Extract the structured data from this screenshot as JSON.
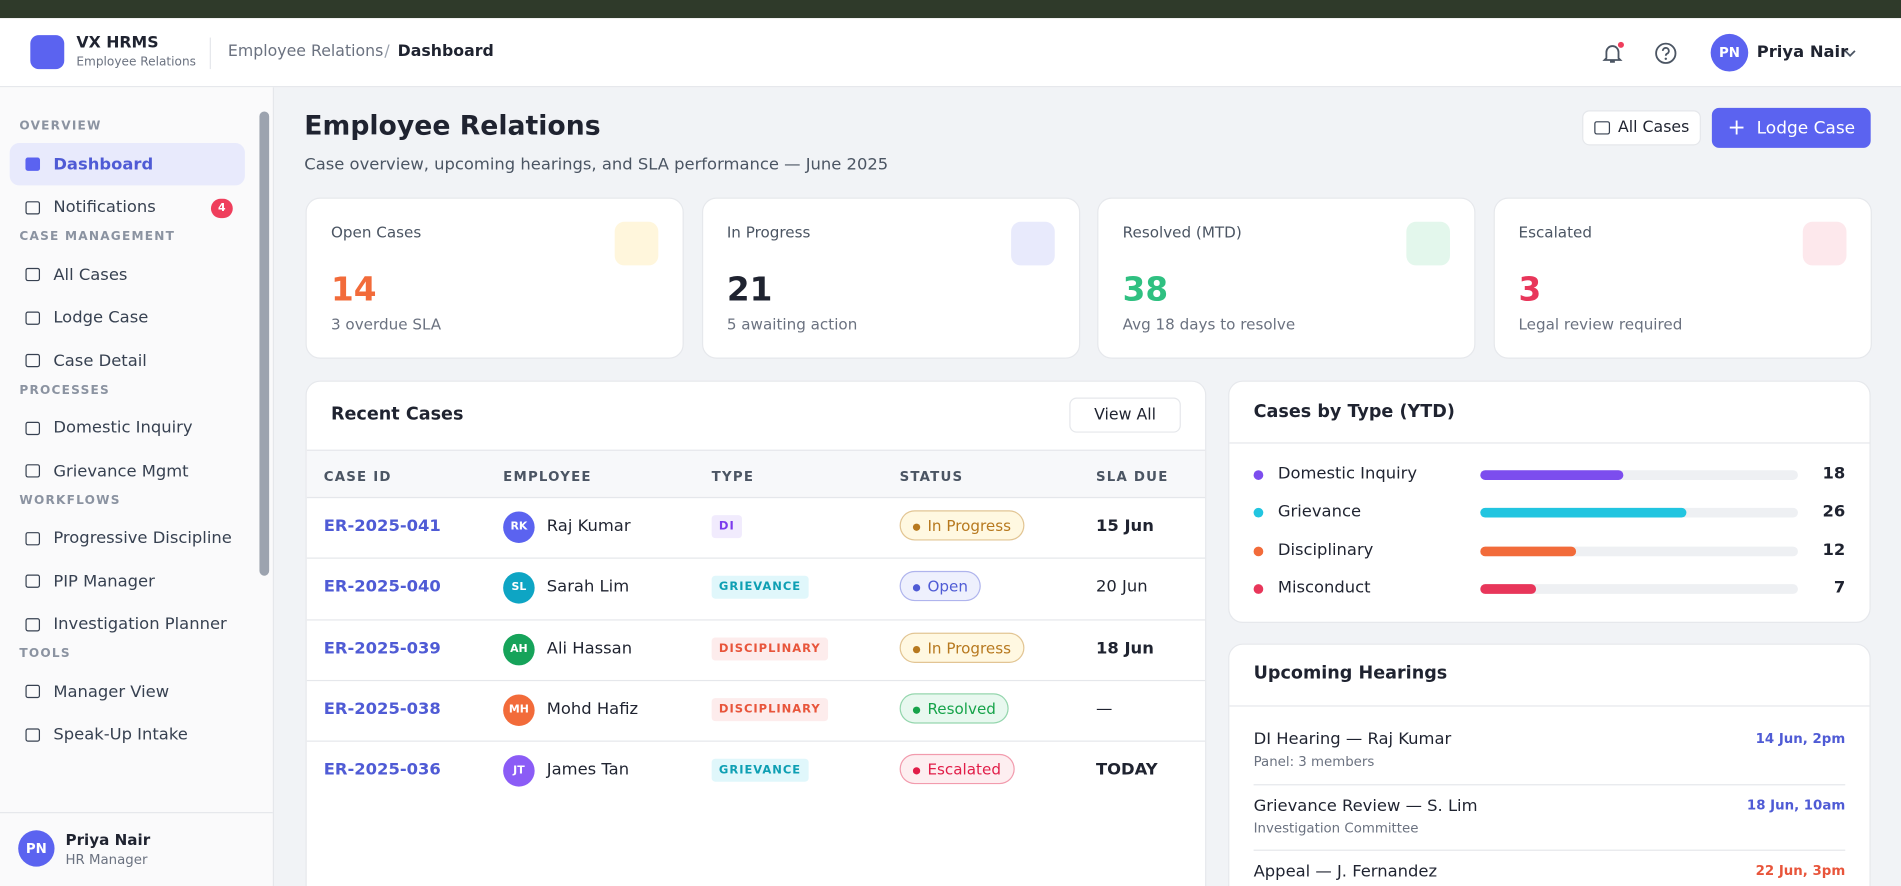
{
  "header": {
    "brand": "VX HRMS",
    "brand_sub": "Employee Relations",
    "breadcrumb": [
      "Employee Relations",
      "Dashboard"
    ],
    "user_initials": "PN",
    "user_name": "Priya Nair"
  },
  "sidebar": {
    "sections": [
      {
        "title": "OVERVIEW",
        "items": [
          {
            "label": "Dashboard",
            "active": true
          },
          {
            "label": "Notifications",
            "badge": 4
          }
        ]
      },
      {
        "title": "CASE MANAGEMENT",
        "items": [
          {
            "label": "All Cases"
          },
          {
            "label": "Lodge Case"
          },
          {
            "label": "Case Detail"
          }
        ]
      },
      {
        "title": "PROCESSES",
        "items": [
          {
            "label": "Domestic Inquiry"
          },
          {
            "label": "Grievance Mgmt"
          }
        ]
      },
      {
        "title": "WORKFLOWS",
        "items": [
          {
            "label": "Progressive Discipline"
          },
          {
            "label": "PIP Manager"
          },
          {
            "label": "Investigation Planner"
          }
        ]
      },
      {
        "title": "TOOLS",
        "items": [
          {
            "label": "Manager View"
          },
          {
            "label": "Speak-Up Intake"
          }
        ]
      }
    ],
    "footer": {
      "initials": "PN",
      "name": "Priya Nair",
      "role": "HR Manager"
    }
  },
  "page": {
    "title": "Employee Relations",
    "subtitle": "Case overview, upcoming hearings, and SLA performance — June 2025",
    "buttons": [
      "All Cases",
      "Lodge Case"
    ]
  },
  "stats": [
    {
      "label": "Open Cases",
      "value": 14,
      "note": "3 overdue SLA",
      "color": "#f26b3a",
      "icon_bg": "#fff6dc"
    },
    {
      "label": "In Progress",
      "value": 21,
      "note": "5 awaiting action",
      "color": "#1f2330",
      "icon_bg": "#e8eafc"
    },
    {
      "label": "Resolved (MTD)",
      "value": 38,
      "note": "Avg 18 days to resolve",
      "color": "#2fc081",
      "icon_bg": "#e3f7ec"
    },
    {
      "label": "Escalated",
      "value": 3,
      "note": "Legal review required",
      "color": "#e8365a",
      "icon_bg": "#fde8ec"
    }
  ],
  "recent_cases": {
    "title": "Recent Cases",
    "action": "View All",
    "columns": [
      "CASE ID",
      "EMPLOYEE",
      "TYPE",
      "STATUS",
      "SLA DUE"
    ],
    "rows": [
      {
        "id": "ER-2025-041",
        "initials": "RK",
        "employee": "Raj Kumar",
        "avatar_color": "#5b63f0",
        "type": "DI",
        "type_color": "#7c3aed",
        "type_bg": "#f1ebfd",
        "status": "In Progress",
        "status_color": "#b7791f",
        "status_bg": "#fff8e1",
        "sla": "15 Jun",
        "sla_bold": true
      },
      {
        "id": "ER-2025-040",
        "initials": "SL",
        "employee": "Sarah Lim",
        "avatar_color": "#0ea5c4",
        "type": "GRIEVANCE",
        "type_color": "#0e9fb3",
        "type_bg": "#e0f7fb",
        "status": "Open",
        "status_color": "#4f5bd5",
        "status_bg": "#eef0fd",
        "sla": "20 Jun",
        "sla_bold": false
      },
      {
        "id": "ER-2025-039",
        "initials": "AH",
        "employee": "Ali Hassan",
        "avatar_color": "#16a35a",
        "type": "DISCIPLINARY",
        "type_color": "#e8553b",
        "type_bg": "#fdecec",
        "status": "In Progress",
        "status_color": "#b7791f",
        "status_bg": "#fff8e1",
        "sla": "18 Jun",
        "sla_bold": true
      },
      {
        "id": "ER-2025-038",
        "initials": "MH",
        "employee": "Mohd Hafiz",
        "avatar_color": "#f26b3a",
        "type": "DISCIPLINARY",
        "type_color": "#e8553b",
        "type_bg": "#fdecec",
        "status": "Resolved",
        "status_color": "#16a34a",
        "status_bg": "#e8f8ef",
        "sla": "—",
        "sla_bold": false
      },
      {
        "id": "ER-2025-036",
        "initials": "JT",
        "employee": "James Tan",
        "avatar_color": "#8b5cf6",
        "type": "GRIEVANCE",
        "type_color": "#0e9fb3",
        "type_bg": "#e0f7fb",
        "status": "Escalated",
        "status_color": "#e11d48",
        "status_bg": "#fdeef0",
        "sla": "TODAY",
        "sla_bold": true
      }
    ]
  },
  "cases_by_type": {
    "title": "Cases by Type (YTD)",
    "xlim": [
      0,
      40
    ],
    "items": [
      {
        "name": "Domestic Inquiry",
        "color": "#7c4dee",
        "value": 18
      },
      {
        "name": "Grievance",
        "color": "#22c5e0",
        "value": 26
      },
      {
        "name": "Disciplinary",
        "color": "#f26b3a",
        "value": 12
      },
      {
        "name": "Misconduct",
        "color": "#e8365a",
        "value": 7
      }
    ]
  },
  "hearings": {
    "title": "Upcoming Hearings",
    "items": [
      {
        "title": "DI Hearing — Raj Kumar",
        "sub": "Panel: 3 members",
        "when": "14 Jun, 2pm",
        "urgent": false
      },
      {
        "title": "Grievance Review — S. Lim",
        "sub": "Investigation Committee",
        "when": "18 Jun, 10am",
        "urgent": false
      },
      {
        "title": "Appeal — J. Fernandez",
        "sub": "",
        "when": "22 Jun, 3pm",
        "urgent": true
      }
    ]
  }
}
